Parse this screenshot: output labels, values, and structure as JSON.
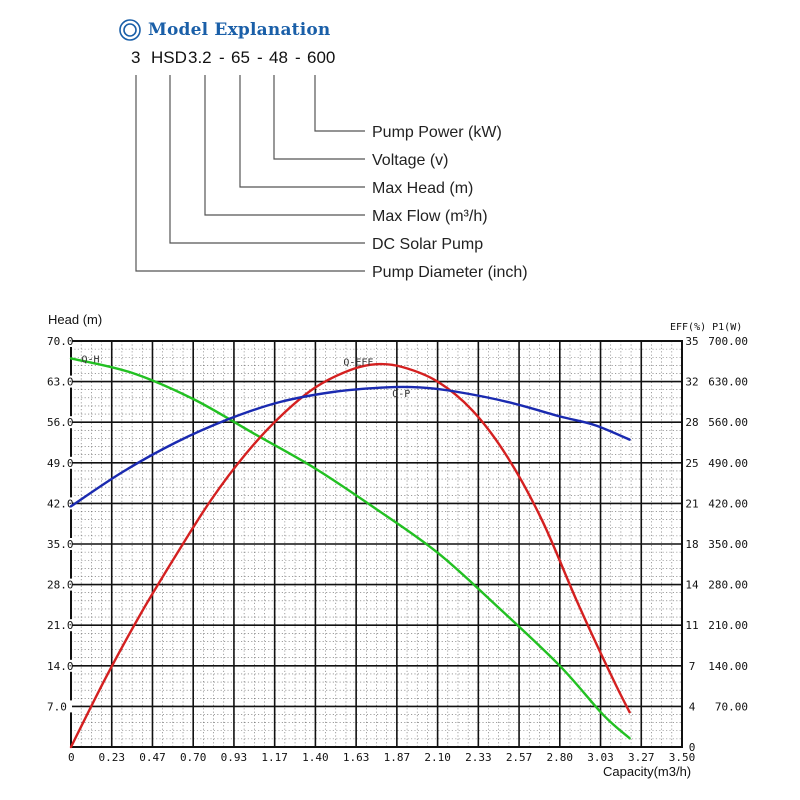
{
  "header": {
    "title": "Model Explanation",
    "title_color": "#1a5fa8"
  },
  "model_code": {
    "parts": [
      "3",
      "HSD",
      "3.2",
      "-",
      "65",
      "-",
      "48",
      "-",
      "600"
    ]
  },
  "legend_items": [
    "Pump Power (kW)",
    "Voltage (v)",
    "Max Head (m)",
    "Max Flow (m³/h)",
    "DC Solar Pump",
    "Pump Diameter (inch)"
  ],
  "chart_data": {
    "type": "line",
    "left_axis_title": "Head (m)",
    "right_axis_title": "EFF(%) P1(W)",
    "xlabel": "Capacity(m3/h)",
    "x_ticks": [
      "0",
      "0.23",
      "0.47",
      "0.70",
      "0.93",
      "1.17",
      "1.40",
      "1.63",
      "1.87",
      "2.10",
      "2.33",
      "2.57",
      "2.80",
      "3.03",
      "3.27",
      "3.50"
    ],
    "xlim": [
      0,
      3.5
    ],
    "head_ticks": [
      "7.0",
      "14.0",
      "21.0",
      "28.0",
      "35.0",
      "42.0",
      "49.0",
      "56.0",
      "63.0",
      "70.0"
    ],
    "ylim_head": [
      0,
      70
    ],
    "eff_ticks": [
      "0",
      "4",
      "7",
      "11",
      "14",
      "18",
      "21",
      "25",
      "28",
      "32",
      "35"
    ],
    "p1_ticks": [
      "70.00",
      "140.00",
      "210.00",
      "280.00",
      "350.00",
      "420.00",
      "490.00",
      "560.00",
      "630.00",
      "700.00"
    ],
    "series": [
      {
        "name": "Q-H",
        "color": "#22c022",
        "unit": "head_m",
        "x": [
          0,
          0.35,
          0.7,
          1.05,
          1.4,
          1.75,
          2.1,
          2.45,
          2.8,
          3.05,
          3.2
        ],
        "y": [
          67,
          64.5,
          60,
          54,
          48,
          41,
          33.5,
          24,
          14,
          5.5,
          1.5
        ]
      },
      {
        "name": "Q-EFF",
        "color": "#d42020",
        "unit": "head_m",
        "x": [
          0,
          0.2,
          0.4,
          0.6,
          0.8,
          1.0,
          1.2,
          1.4,
          1.6,
          1.75,
          1.9,
          2.1,
          2.3,
          2.5,
          2.7,
          2.9,
          3.1,
          3.2
        ],
        "y": [
          0,
          12,
          23,
          33,
          42.5,
          50.5,
          57,
          62,
          65,
          66,
          65.5,
          63,
          58,
          50,
          39,
          25,
          12,
          6
        ]
      },
      {
        "name": "Q-P",
        "color": "#1a2ab0",
        "unit": "head_m",
        "x": [
          0,
          0.3,
          0.6,
          0.9,
          1.2,
          1.5,
          1.8,
          2.0,
          2.2,
          2.5,
          2.8,
          3.0,
          3.2
        ],
        "y": [
          41.5,
          47.5,
          52.5,
          56.5,
          59.5,
          61.2,
          62,
          62,
          61.3,
          59.5,
          57,
          55.5,
          53
        ]
      }
    ],
    "curve_tags": [
      {
        "text": "Q-H",
        "x": 0.06,
        "y": 67
      },
      {
        "text": "Q-EFF",
        "x": 1.56,
        "y": 66.5
      },
      {
        "text": "Q-P",
        "x": 1.84,
        "y": 61
      }
    ]
  }
}
